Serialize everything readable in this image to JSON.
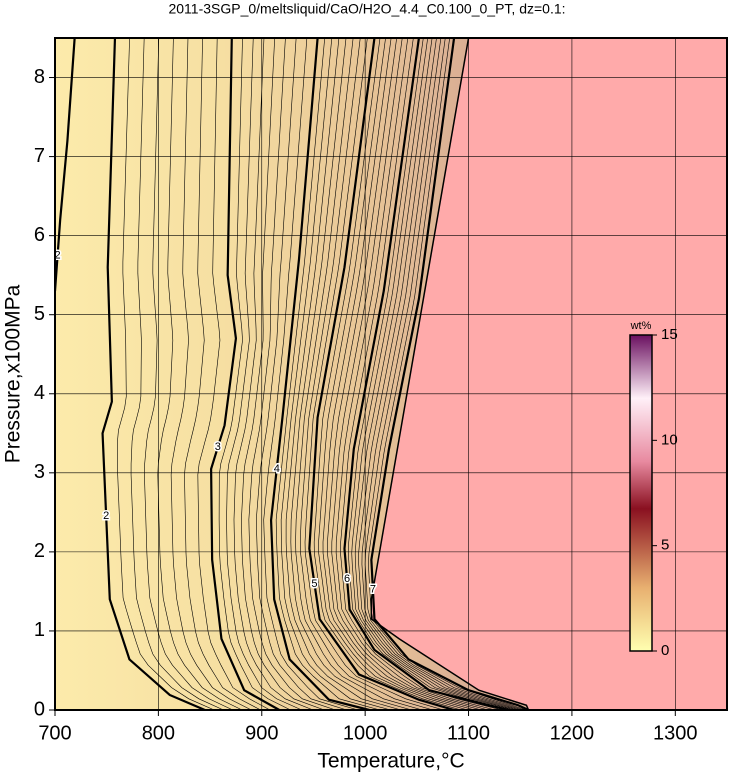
{
  "chart_data": {
    "type": "contour",
    "title": "2011-3SGP_0/meltsliquid/CaO/H2O_4.4_C0.100_0_PT, dz=0.1:",
    "x_label": "Temperature,°C",
    "y_label": "Pressure,x100MPa",
    "xlim": [
      700,
      1350
    ],
    "ylim": [
      0,
      8.5
    ],
    "xticks": [
      700,
      800,
      900,
      1000,
      1100,
      1200,
      1300
    ],
    "yticks": [
      0,
      1,
      2,
      3,
      4,
      5,
      6,
      7,
      8
    ],
    "grid": true,
    "liquidus": {
      "color": "#ffaaaa",
      "x": [
        1100,
        1006,
        1006,
        1033,
        1110,
        1156,
        1158
      ],
      "y": [
        8.5,
        1.4,
        1.15,
        0.9,
        0.25,
        0.06,
        0
      ]
    },
    "contours": [
      {
        "level": 2,
        "x": [
          719,
          712,
          705,
          700
        ],
        "y": [
          8.5,
          7.2,
          6.2,
          5.3
        ]
      },
      {
        "level": 2,
        "x": [
          758,
          751,
          755,
          746,
          753,
          772,
          811,
          845
        ],
        "y": [
          8.5,
          5.6,
          3.9,
          3.5,
          1.4,
          0.64,
          0.19,
          0
        ]
      },
      {
        "level": 3,
        "x": [
          871,
          867,
          875,
          864,
          851,
          852,
          861,
          883,
          917
        ],
        "y": [
          8.5,
          5.5,
          4.7,
          3.6,
          3.05,
          1.9,
          0.9,
          0.25,
          0
        ]
      },
      {
        "level": 4,
        "x": [
          954,
          946,
          936,
          920,
          909,
          912,
          927,
          965,
          1004
        ],
        "y": [
          8.5,
          7.25,
          5.7,
          3.7,
          2.4,
          1.4,
          0.64,
          0.13,
          0
        ]
      },
      {
        "level": 5,
        "x": [
          1009,
          980,
          954,
          946,
          956,
          994,
          1052,
          1086
        ],
        "y": [
          8.5,
          5.6,
          3.7,
          2.04,
          1.15,
          0.45,
          0.13,
          0
        ]
      },
      {
        "level": 6,
        "x": [
          1052,
          1018,
          989,
          980,
          985,
          1009,
          1062,
          1119,
          1139
        ],
        "y": [
          8.5,
          5.3,
          3.3,
          2.04,
          1.27,
          0.76,
          0.25,
          0.06,
          0
        ]
      },
      {
        "level": 7,
        "x": [
          1086,
          1052,
          1023,
          1006,
          1009,
          1042,
          1100,
          1148,
          1158
        ],
        "y": [
          8.5,
          5.2,
          3.3,
          1.9,
          1.15,
          0.64,
          0.25,
          0.06,
          0
        ]
      }
    ],
    "colorbar": {
      "label": "wt%",
      "lim": [
        0,
        15
      ],
      "ticks": [
        0,
        5,
        10,
        15
      ]
    }
  }
}
